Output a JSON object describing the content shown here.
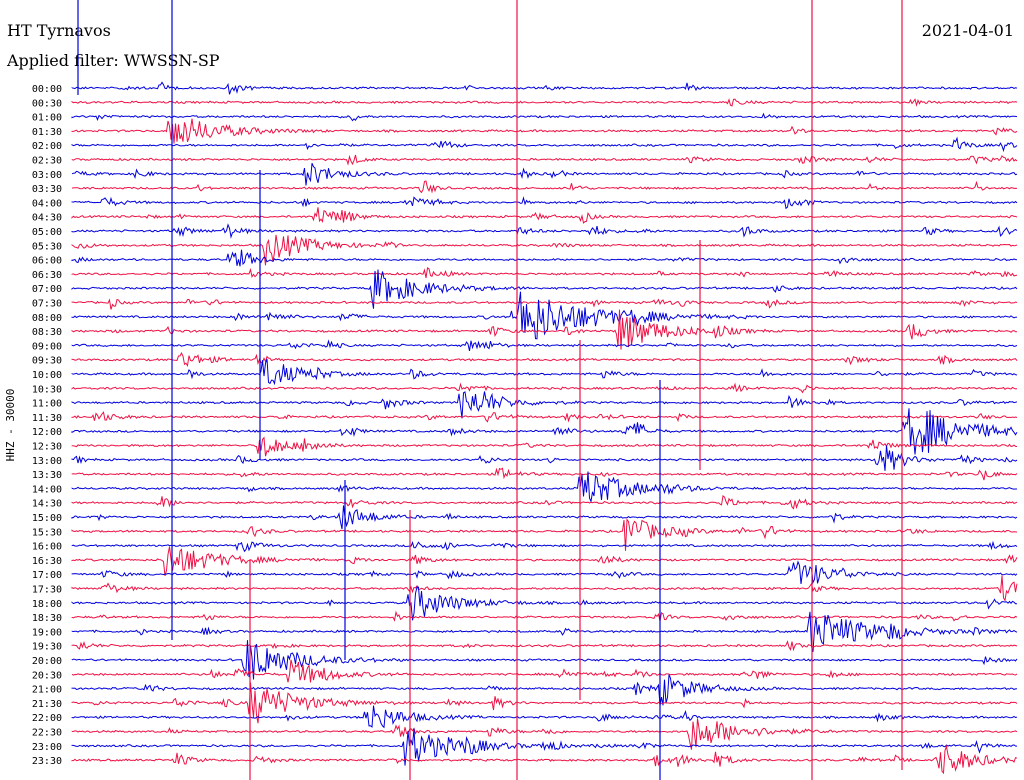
{
  "header": {
    "station": "HT Tyrnavos",
    "filter": "Applied filter: WWSSN-SP",
    "date": "2021-04-01"
  },
  "chart_data": {
    "type": "line",
    "title": "HT Tyrnavos",
    "ylabel": "HHZ - 30000",
    "rows": [
      "00:00",
      "00:30",
      "01:00",
      "01:30",
      "02:00",
      "02:30",
      "03:00",
      "03:30",
      "04:00",
      "04:30",
      "05:00",
      "05:30",
      "06:00",
      "06:30",
      "07:00",
      "07:30",
      "08:00",
      "08:30",
      "09:00",
      "09:30",
      "10:00",
      "10:30",
      "11:00",
      "11:30",
      "12:00",
      "12:30",
      "13:00",
      "13:30",
      "14:00",
      "14:30",
      "15:00",
      "15:30",
      "16:00",
      "16:30",
      "17:00",
      "17:30",
      "18:00",
      "18:30",
      "19:00",
      "19:30",
      "20:00",
      "20:30",
      "21:00",
      "21:30",
      "22:00",
      "22:30",
      "23:00",
      "23:30"
    ],
    "series_colors": [
      "#0000dd",
      "#ee1144"
    ],
    "grid": false,
    "notes": "48 half-hour helicorder traces, alternating blue/red; large events and spikes drawn across traces"
  }
}
